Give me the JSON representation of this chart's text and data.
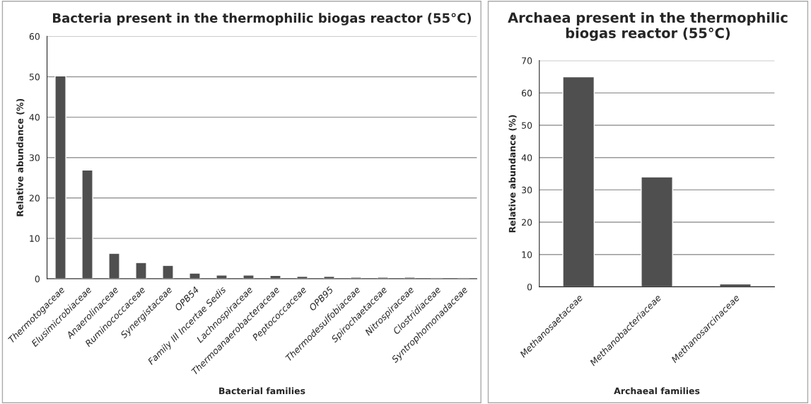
{
  "chart_data": [
    {
      "type": "bar",
      "title": "Bacteria present in the thermophilic biogas reactor (55°C)",
      "xlabel": "Bacterial families",
      "ylabel": "Relative abundance (%)",
      "categories": [
        "Thermotogaceae",
        "Elusimicrobiaceae",
        "Anaerolinaceae",
        "Ruminococcaceae",
        "Synergistaceae",
        "OPB54",
        "Family III Incertae Sedis",
        "Lachnospiraceae",
        "Thermoanaerobacteraceae",
        "Peptococcaceae",
        "OPB95",
        "Thermodesulfobiaceae",
        "Spirochaetaceae",
        "Nitrospiraceae",
        "Clostridiaceae",
        "Syntrophomonadaceae"
      ],
      "values": [
        50.2,
        26.9,
        6.3,
        4.0,
        3.3,
        1.4,
        0.9,
        0.9,
        0.8,
        0.6,
        0.6,
        0.4,
        0.4,
        0.4,
        0.2,
        0.2
      ],
      "color": "#4f4f4f",
      "ylim": [
        0,
        60
      ],
      "yticks": [
        0,
        10,
        20,
        30,
        40,
        50,
        60
      ],
      "grid": "y"
    },
    {
      "type": "bar",
      "title": "Archaea present in the thermophilic biogas reactor (55°C)",
      "xlabel": "Archaeal families",
      "ylabel": "Relative abundance (%)",
      "categories": [
        "Methanosaetaceae",
        "Methanobacteriaceae",
        "Methanosarcinaceae"
      ],
      "values": [
        65,
        34,
        0.9
      ],
      "color": "#4f4f4f",
      "ylim": [
        0,
        70
      ],
      "yticks": [
        0,
        10,
        20,
        30,
        40,
        50,
        60,
        70
      ],
      "grid": "y"
    }
  ]
}
